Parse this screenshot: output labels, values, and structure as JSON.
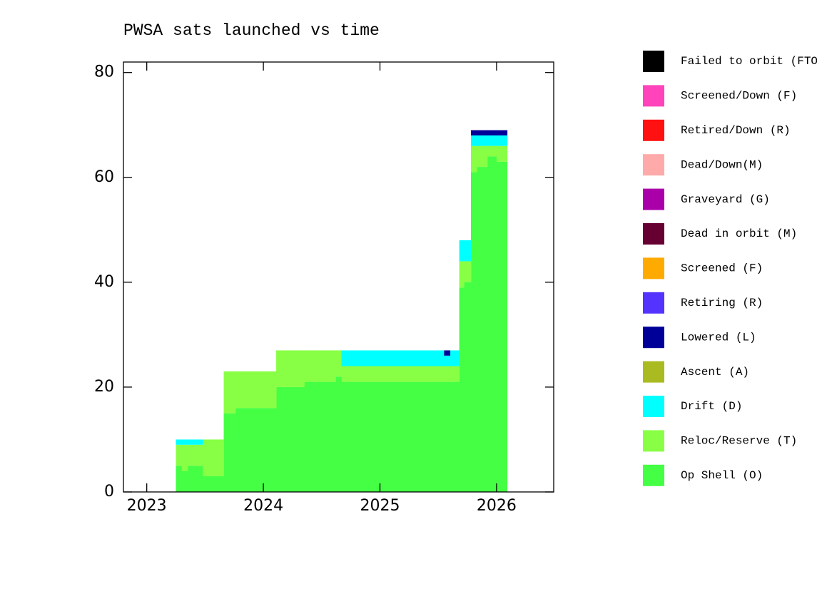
{
  "chart_data": {
    "type": "stacked-step",
    "title": "PWSA sats launched vs time",
    "x": [
      2023.25,
      2023.3,
      2023.35,
      2023.48,
      2023.66,
      2023.76,
      2024.11,
      2024.35,
      2024.62,
      2024.67,
      2025.55,
      2025.6,
      2025.68,
      2025.72,
      2025.78,
      2025.83,
      2025.92,
      2026.0,
      2026.09
    ],
    "series": [
      {
        "name": "Op Shell (O)",
        "color": "#44ff44",
        "values": [
          5,
          4,
          5,
          3,
          15,
          16,
          20,
          21,
          22,
          21,
          21,
          21,
          39,
          40,
          61,
          62,
          64,
          63,
          0
        ]
      },
      {
        "name": "Reloc/Reserve (T)",
        "color": "#88ff44",
        "values": [
          4,
          5,
          4,
          7,
          8,
          7,
          7,
          6,
          5,
          3,
          3,
          3,
          5,
          4,
          5,
          4,
          2,
          3,
          0
        ]
      },
      {
        "name": "Drift (D)",
        "color": "#00ffff",
        "values": [
          1,
          1,
          1,
          0,
          0,
          0,
          0,
          0,
          0,
          3,
          2,
          3,
          4,
          4,
          2,
          2,
          2,
          2,
          0
        ]
      },
      {
        "name": "Ascent (A)",
        "color": "#aabb22",
        "values": [
          0,
          0,
          0,
          0,
          0,
          0,
          0,
          0,
          0,
          0,
          0,
          0,
          0,
          0,
          0,
          0,
          0,
          0,
          0
        ]
      },
      {
        "name": "Lowered (L)",
        "color": "#000099",
        "values": [
          0,
          0,
          0,
          0,
          0,
          0,
          0,
          0,
          0,
          0,
          1,
          0,
          0,
          0,
          1,
          1,
          1,
          1,
          0
        ]
      },
      {
        "name": "Retiring (R)",
        "color": "#5533ff",
        "values": [
          0,
          0,
          0,
          0,
          0,
          0,
          0,
          0,
          0,
          0,
          0,
          0,
          0,
          0,
          0,
          0,
          0,
          0,
          0
        ]
      },
      {
        "name": "Screened (F)",
        "color": "#ffaa00",
        "values": [
          0,
          0,
          0,
          0,
          0,
          0,
          0,
          0,
          0,
          0,
          0,
          0,
          0,
          0,
          0,
          0,
          0,
          0,
          0
        ]
      },
      {
        "name": "Dead in orbit (M)",
        "color": "#660033",
        "values": [
          0,
          0,
          0,
          0,
          0,
          0,
          0,
          0,
          0,
          0,
          0,
          0,
          0,
          0,
          0,
          0,
          0,
          0,
          0
        ]
      },
      {
        "name": "Graveyard (G)",
        "color": "#aa00aa",
        "values": [
          0,
          0,
          0,
          0,
          0,
          0,
          0,
          0,
          0,
          0,
          0,
          0,
          0,
          0,
          0,
          0,
          0,
          0,
          0
        ]
      },
      {
        "name": "Dead/Down(M)",
        "color": "#ffaaaa",
        "values": [
          0,
          0,
          0,
          0,
          0,
          0,
          0,
          0,
          0,
          0,
          0,
          0,
          0,
          0,
          0,
          0,
          0,
          0,
          0
        ]
      },
      {
        "name": "Retired/Down (R)",
        "color": "#ff1111",
        "values": [
          0,
          0,
          0,
          0,
          0,
          0,
          0,
          0,
          0,
          0,
          0,
          0,
          0,
          0,
          0,
          0,
          0,
          0,
          0
        ]
      },
      {
        "name": "Screened/Down (F)",
        "color": "#ff44bb",
        "values": [
          0,
          0,
          0,
          0,
          0,
          0,
          0,
          0,
          0,
          0,
          0,
          0,
          0,
          0,
          0,
          0,
          0,
          0,
          0
        ]
      },
      {
        "name": "Failed to orbit (FTO)",
        "color": "#000000",
        "values": [
          0,
          0,
          0,
          0,
          0,
          0,
          0,
          0,
          0,
          0,
          0,
          0,
          0,
          0,
          0,
          0,
          0,
          0,
          0
        ]
      }
    ],
    "xlim": [
      2022.8,
      2026.49
    ],
    "xticks": [
      2023,
      2024,
      2025,
      2026
    ],
    "ylim": [
      0,
      82
    ],
    "yticks": [
      0,
      20,
      40,
      60,
      80
    ]
  }
}
